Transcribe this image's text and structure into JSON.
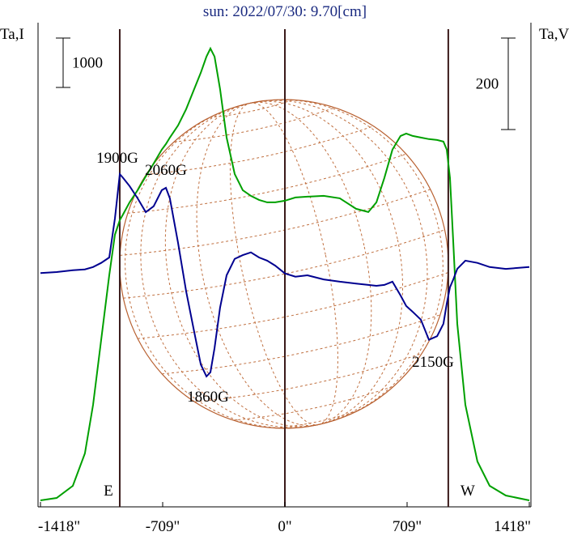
{
  "chart_data": {
    "type": "line",
    "title": "sun: 2022/07/30: 9.70[cm]",
    "y_label": "Ta,I",
    "y2_label": "Ta,V",
    "x": [
      -1418,
      -1324,
      -1230,
      -1160,
      -1113,
      -1066,
      -1019,
      -986,
      -958,
      -939,
      -901,
      -854,
      -807,
      -761,
      -714,
      -690,
      -667,
      -620,
      -573,
      -526,
      -488,
      -455,
      -432,
      -408,
      -376,
      -338,
      -291,
      -244,
      -197,
      -150,
      -103,
      -56,
      0,
      61,
      131,
      225,
      319,
      413,
      484,
      531,
      577,
      624,
      671,
      704,
      742,
      789,
      836,
      883,
      920,
      939,
      958,
      977,
      1000,
      1047,
      1117,
      1188,
      1282,
      1418
    ],
    "series": [
      {
        "name": "Ta,I",
        "color": "#00a000",
        "axis": "y",
        "values": [
          131,
          180,
          426,
          1082,
          2065,
          3377,
          4688,
          5508,
          5803,
          5918,
          6164,
          6410,
          6689,
          6950,
          7230,
          7344,
          7475,
          7721,
          8049,
          8458,
          8787,
          9114,
          9278,
          9114,
          8458,
          7475,
          6737,
          6410,
          6295,
          6213,
          6164,
          6164,
          6197,
          6262,
          6279,
          6295,
          6246,
          6033,
          5967,
          6164,
          6656,
          7230,
          7508,
          7557,
          7508,
          7475,
          7443,
          7426,
          7393,
          7230,
          6656,
          5344,
          3705,
          2065,
          918,
          426,
          229,
          131
        ]
      },
      {
        "name": "Ta,V",
        "color": "#000090",
        "axis": "y2",
        "values": [
          -4,
          -2,
          2,
          4,
          9,
          18,
          30,
          115,
          212,
          204,
          186,
          159,
          129,
          142,
          177,
          182,
          159,
          62,
          -44,
          -133,
          -204,
          -230,
          -221,
          -168,
          -80,
          -9,
          27,
          35,
          41,
          30,
          23,
          12,
          -5,
          -12,
          -9,
          -18,
          -23,
          -27,
          -30,
          -32,
          -30,
          -23,
          -53,
          -76,
          -89,
          -106,
          -150,
          -142,
          -115,
          -71,
          -35,
          -18,
          5,
          23,
          18,
          9,
          5,
          9
        ]
      }
    ],
    "xlim": [
      -1418,
      1418
    ],
    "xticks": [
      {
        "value": -1418,
        "label": "-1418\""
      },
      {
        "value": -709,
        "label": "-709\""
      },
      {
        "value": 0,
        "label": "0\""
      },
      {
        "value": 709,
        "label": "709\""
      },
      {
        "value": 1418,
        "label": "1418\""
      }
    ],
    "ylim": [
      0,
      9800
    ],
    "y2lim": [
      -515,
      543
    ],
    "scale_bars": [
      {
        "axis": "y",
        "value": 1000
      },
      {
        "axis": "y2",
        "value": 200
      }
    ],
    "vlines": [
      {
        "x": -958,
        "label": "E"
      },
      {
        "x": 0
      },
      {
        "x": 948,
        "label": "W"
      }
    ],
    "annotations": [
      "1900G",
      "2060G",
      "1860G",
      "2150G"
    ]
  }
}
